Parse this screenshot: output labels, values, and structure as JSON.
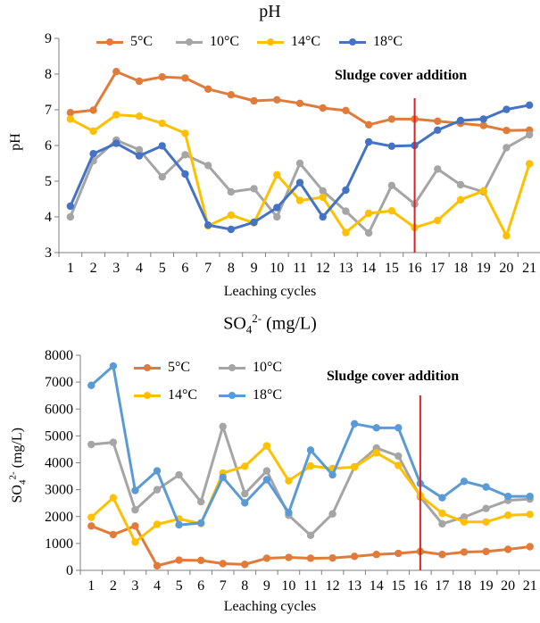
{
  "charts": [
    {
      "title": "pH",
      "ylabel": "pH",
      "xlabel": "Leaching cycles",
      "annotation": "Sludge cover addition"
    },
    {
      "title_main": "SO",
      "title_sub": "4",
      "title_sup": "2-",
      "title_rest": " (mg/L)",
      "ylabel_main": "SO",
      "ylabel_sub": "4",
      "ylabel_sup": "2-",
      "ylabel_rest": " (mg/L)",
      "xlabel": "Leaching cycles",
      "annotation": "Sludge cover addition"
    }
  ],
  "chart_data": [
    {
      "type": "line",
      "title": "pH",
      "xlabel": "Leaching cycles",
      "ylabel": "pH",
      "x": [
        1,
        2,
        3,
        4,
        5,
        6,
        7,
        8,
        9,
        10,
        11,
        12,
        13,
        14,
        15,
        16,
        17,
        18,
        19,
        20,
        21
      ],
      "ylim": [
        3,
        9
      ],
      "yticks": [
        3,
        4,
        5,
        6,
        7,
        8,
        9
      ],
      "grid": false,
      "legend": "top",
      "vline": {
        "x": 16,
        "color": "#e02020",
        "label": "Sludge cover addition"
      },
      "series": [
        {
          "name": "5°C",
          "color": "#e07b39",
          "values": [
            6.92,
            6.99,
            8.07,
            7.8,
            7.92,
            7.89,
            7.58,
            7.42,
            7.25,
            7.28,
            7.18,
            7.05,
            6.98,
            6.58,
            6.74,
            6.74,
            6.68,
            6.62,
            6.56,
            6.42,
            6.43
          ]
        },
        {
          "name": "10°C",
          "color": "#a5a5a5",
          "values": [
            4.0,
            5.57,
            6.15,
            5.88,
            5.12,
            5.74,
            5.44,
            4.7,
            4.79,
            4.0,
            5.5,
            4.73,
            4.16,
            3.55,
            4.88,
            4.36,
            5.34,
            4.9,
            4.7,
            5.94,
            6.3
          ]
        },
        {
          "name": "14°C",
          "color": "#ffc000",
          "values": [
            6.74,
            6.4,
            6.86,
            6.82,
            6.62,
            6.34,
            3.75,
            4.05,
            3.83,
            5.18,
            4.46,
            4.55,
            3.56,
            4.1,
            4.17,
            3.7,
            3.9,
            4.48,
            4.73,
            3.47,
            5.49
          ]
        },
        {
          "name": "18°C",
          "color": "#4472c4",
          "values": [
            4.3,
            5.77,
            6.06,
            5.71,
            5.99,
            5.2,
            3.77,
            3.65,
            3.85,
            4.26,
            4.96,
            4.0,
            4.75,
            6.1,
            5.98,
            6.0,
            6.43,
            6.7,
            6.74,
            7.01,
            7.13
          ]
        }
      ]
    },
    {
      "type": "line",
      "title": "SO4 2- (mg/L)",
      "xlabel": "Leaching cycles",
      "ylabel": "SO4 2- (mg/L)",
      "x": [
        1,
        2,
        3,
        4,
        5,
        6,
        7,
        8,
        9,
        10,
        11,
        12,
        13,
        14,
        15,
        16,
        17,
        18,
        19,
        20,
        21
      ],
      "ylim": [
        0,
        8000
      ],
      "yticks": [
        0,
        1000,
        2000,
        3000,
        4000,
        5000,
        6000,
        7000,
        8000
      ],
      "grid": false,
      "legend": "top",
      "vline": {
        "x": 16,
        "color": "#e02020",
        "label": "Sludge cover addition"
      },
      "series": [
        {
          "name": "5°C",
          "color": "#e07b39",
          "values": [
            1650,
            1330,
            1650,
            170,
            380,
            370,
            250,
            220,
            450,
            480,
            450,
            460,
            520,
            590,
            630,
            700,
            590,
            680,
            700,
            780,
            880
          ]
        },
        {
          "name": "10°C",
          "color": "#a5a5a5",
          "values": [
            4680,
            4760,
            2250,
            3000,
            3550,
            2550,
            5350,
            2850,
            3700,
            2050,
            1300,
            2100,
            3850,
            4550,
            4250,
            2730,
            1730,
            1980,
            2300,
            2600,
            2650
          ]
        },
        {
          "name": "14°C",
          "color": "#ffc000",
          "values": [
            1970,
            2700,
            1050,
            1710,
            1910,
            1740,
            3620,
            3870,
            4630,
            3330,
            3880,
            3790,
            3840,
            4370,
            3900,
            2780,
            2120,
            1800,
            1800,
            2050,
            2080
          ]
        },
        {
          "name": "18°C",
          "color": "#5b9bd5",
          "values": [
            6880,
            7600,
            2970,
            3700,
            1690,
            1760,
            3460,
            2510,
            3370,
            2150,
            4470,
            3550,
            5450,
            5300,
            5300,
            3230,
            2700,
            3310,
            3100,
            2750,
            2750
          ]
        }
      ]
    }
  ]
}
